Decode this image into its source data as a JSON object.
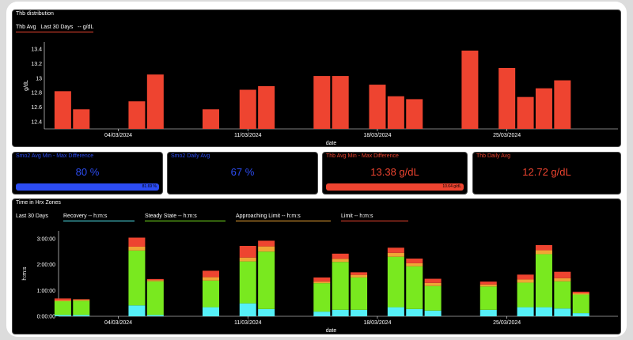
{
  "colors": {
    "hb": "#ee4430",
    "recovery": "#55f0f8",
    "steady": "#79e91f",
    "approaching": "#f0a535",
    "limit": "#ee4430",
    "blue": "#2c4cf2"
  },
  "hb_panel": {
    "title": "Thb distribution",
    "legend": {
      "period": "Last 30 Days",
      "prefix": "Thb Avg",
      "unit": "-- g/dL"
    }
  },
  "stats": [
    {
      "title": "Smo2 Avg Min - Max Difference",
      "value": "80 %",
      "bar_label": "81.69 %",
      "bar_fraction": 1.0,
      "color": "#2c4cf2"
    },
    {
      "title": "Smo2 Daily Avg",
      "value": "67 %",
      "color": "#2c4cf2"
    },
    {
      "title": "Thb Avg Min - Max Difference",
      "value": "13.38 g/dL",
      "bar_label": "10.64 g/dL",
      "bar_fraction": 1.0,
      "color": "#ee4430"
    },
    {
      "title": "Thb Daily Avg",
      "value": "12.72 g/dL",
      "color": "#ee4430"
    }
  ],
  "zones_panel": {
    "title": "Time in Hrx Zones",
    "period": "Last 30 Days",
    "legend": [
      {
        "label": "Recovery  -- h:m:s",
        "color": "#55f0f8"
      },
      {
        "label": "Steady State  -- h:m:s",
        "color": "#79e91f"
      },
      {
        "label": "Approaching Limit  -- h:m:s",
        "color": "#f0a535"
      },
      {
        "label": "Limit  -- h:m:s",
        "color": "#ee4430"
      }
    ]
  },
  "chart_data": [
    {
      "type": "bar",
      "xlabel": "date",
      "ylabel": "g/dL",
      "ylim": [
        12.3,
        13.5
      ],
      "yticks": [
        "12.4",
        "12.6",
        "12.8",
        "13",
        "13.2",
        "13.4"
      ],
      "ytick_values": [
        12.4,
        12.6,
        12.8,
        13.0,
        13.2,
        13.4
      ],
      "xticks": [
        "04/03/2024",
        "11/03/2024",
        "18/03/2024",
        "25/03/2024"
      ],
      "xtick_days": [
        4,
        11,
        18,
        25
      ],
      "x_days": [
        1,
        2,
        5,
        6,
        9,
        11,
        12,
        15,
        16,
        18,
        19,
        20,
        23,
        25,
        26,
        27,
        28
      ],
      "values": [
        12.82,
        12.57,
        12.68,
        13.05,
        12.57,
        12.84,
        12.89,
        13.03,
        13.03,
        12.91,
        12.75,
        12.71,
        13.38,
        13.14,
        12.74,
        12.86,
        12.97
      ]
    },
    {
      "type": "bar",
      "stacked": true,
      "xlabel": "date",
      "ylabel": "h:m:s",
      "ylim": [
        0,
        3.3
      ],
      "yticks": [
        "0:00:00",
        "1:00:00",
        "2:00:00",
        "3:00:00"
      ],
      "ytick_values": [
        0,
        1,
        2,
        3
      ],
      "xticks": [
        "04/03/2024",
        "11/03/2024",
        "18/03/2024",
        "25/03/2024"
      ],
      "xtick_days": [
        4,
        11,
        18,
        25
      ],
      "x_days": [
        1,
        2,
        5,
        6,
        9,
        11,
        12,
        15,
        16,
        17,
        19,
        20,
        21,
        24,
        26,
        27,
        28,
        29
      ],
      "series": [
        {
          "name": "Recovery",
          "values": [
            0.05,
            0.05,
            0.42,
            0.05,
            0.35,
            0.5,
            0.28,
            0.18,
            0.25,
            0.25,
            0.35,
            0.28,
            0.22,
            0.25,
            0.35,
            0.35,
            0.3,
            0.12
          ]
        },
        {
          "name": "Steady State",
          "values": [
            0.53,
            0.55,
            2.12,
            1.3,
            1.03,
            1.62,
            2.22,
            1.1,
            1.85,
            1.25,
            1.95,
            1.65,
            0.95,
            0.9,
            0.95,
            2.05,
            1.05,
            0.72
          ]
        },
        {
          "name": "Approaching Limit",
          "values": [
            0.04,
            0.04,
            0.15,
            0.05,
            0.13,
            0.15,
            0.2,
            0.06,
            0.12,
            0.1,
            0.15,
            0.12,
            0.12,
            0.08,
            0.12,
            0.15,
            0.12,
            0.05
          ]
        },
        {
          "name": "Limit",
          "values": [
            0.07,
            0.02,
            0.35,
            0.04,
            0.25,
            0.45,
            0.22,
            0.16,
            0.2,
            0.1,
            0.2,
            0.18,
            0.16,
            0.11,
            0.19,
            0.2,
            0.25,
            0.06
          ]
        }
      ]
    }
  ]
}
